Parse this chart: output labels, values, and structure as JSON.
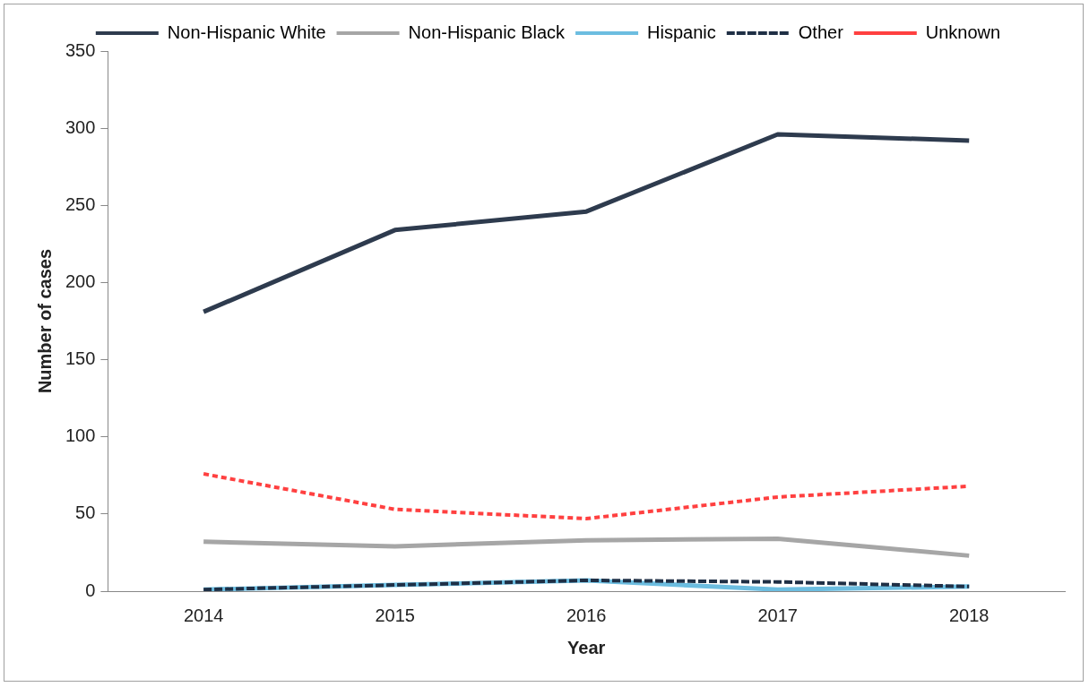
{
  "chart_data": {
    "type": "line",
    "xlabel": "Year",
    "ylabel": "Number of cases",
    "categories": [
      "2014",
      "2015",
      "2016",
      "2017",
      "2018"
    ],
    "series": [
      {
        "name": "Non-Hispanic White",
        "color": "#2e3b4e",
        "values": [
          181,
          234,
          246,
          296,
          292
        ],
        "line_style": "solid"
      },
      {
        "name": "Non-Hispanic Black",
        "color": "#a6a6a6",
        "values": [
          32,
          29,
          33,
          34,
          23
        ],
        "line_style": "solid"
      },
      {
        "name": "Hispanic",
        "color": "#6cbde0",
        "values": [
          1,
          4,
          7,
          1,
          3
        ],
        "line_style": "solid"
      },
      {
        "name": "Other",
        "color": "#1f2f45",
        "values": [
          1,
          4,
          7,
          6,
          3
        ],
        "line_style": "dashed"
      },
      {
        "name": "Unknown",
        "color": "#ff4040",
        "values": [
          76,
          53,
          47,
          61,
          68
        ],
        "line_style": "dotted"
      }
    ],
    "ylim": [
      0,
      350
    ],
    "yticks": [
      0,
      50,
      100,
      150,
      200,
      250,
      300,
      350
    ],
    "grid": false,
    "legend": "top",
    "marker": "none"
  }
}
